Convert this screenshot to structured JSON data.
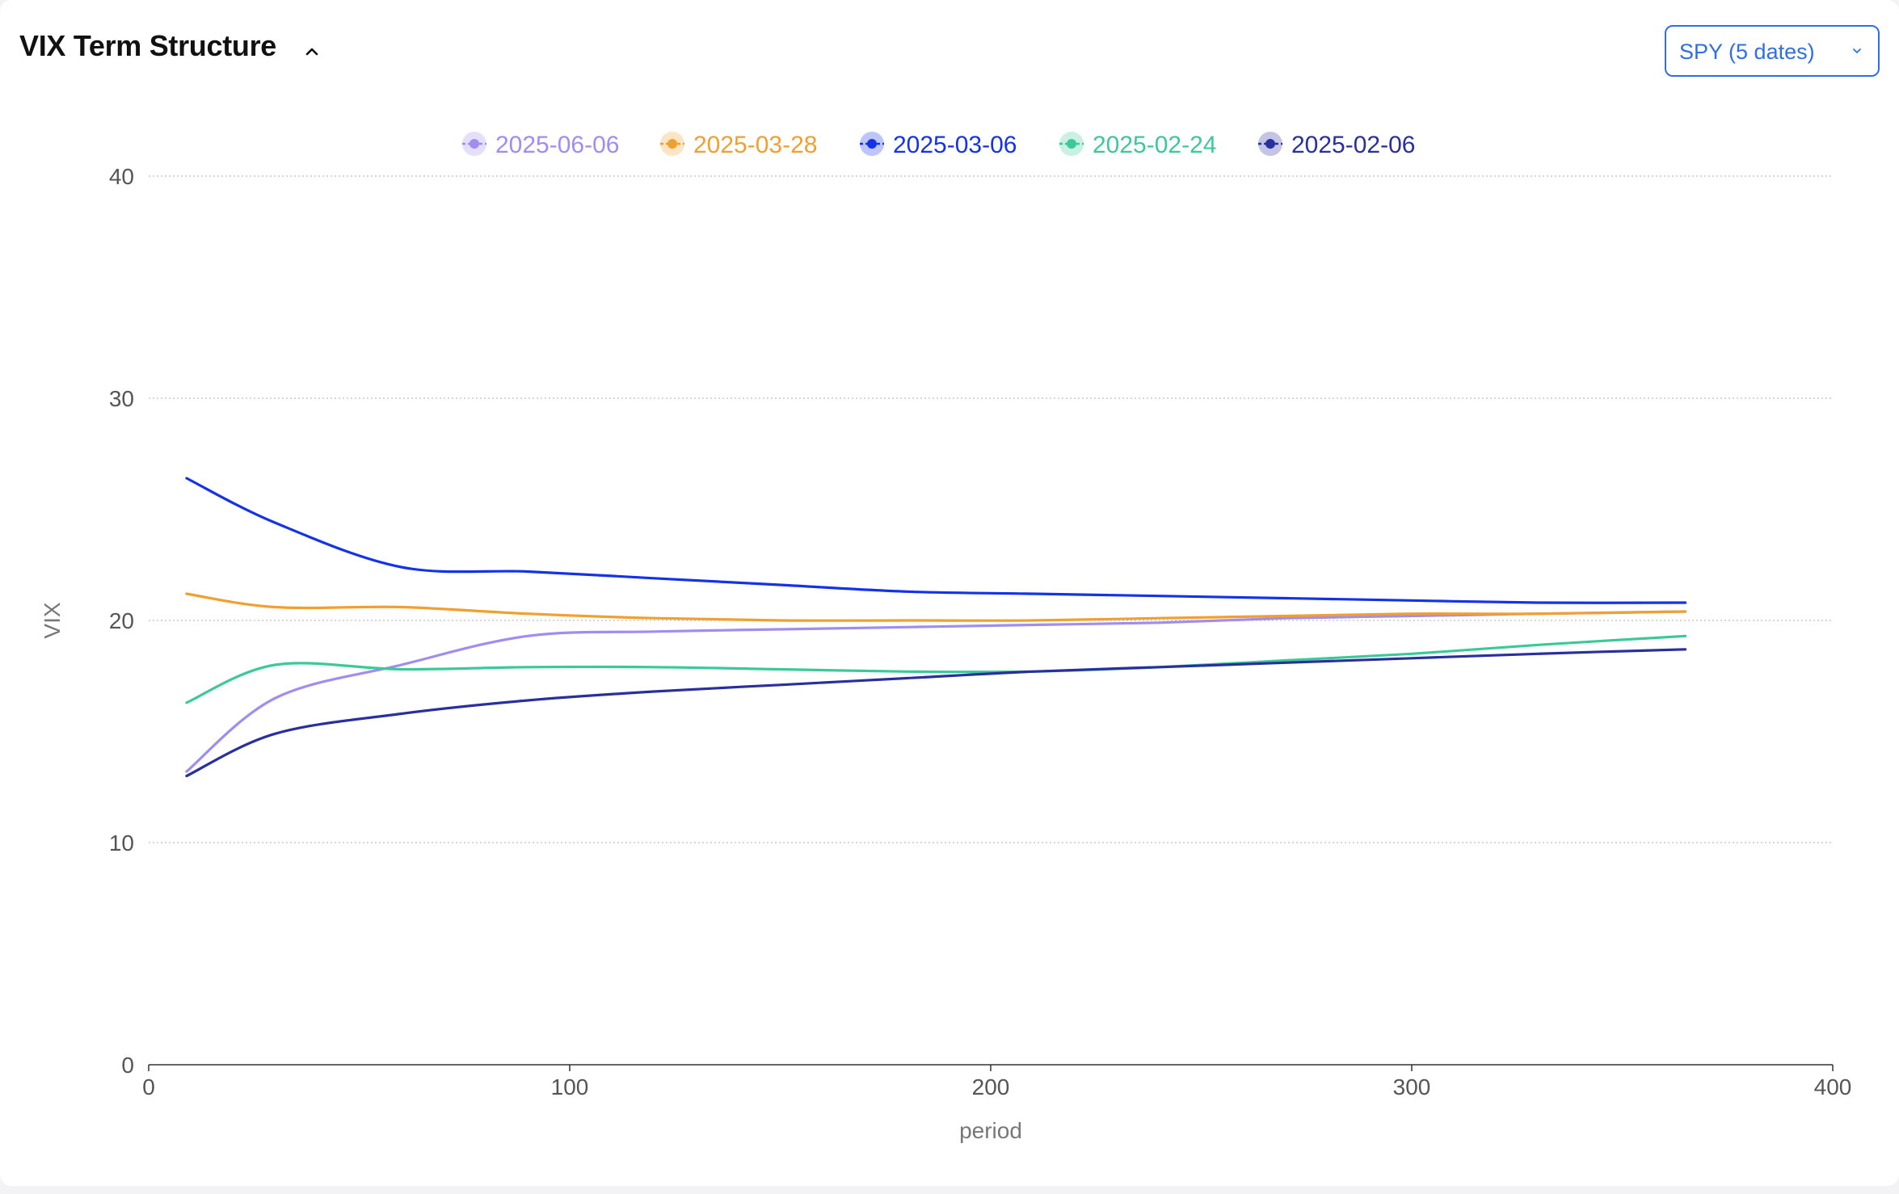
{
  "header": {
    "title": "VIX Term Structure"
  },
  "selector": {
    "value": "SPY (5 dates)"
  },
  "chart_data": {
    "type": "line",
    "xlabel": "period",
    "ylabel": "VIX",
    "xlim": [
      0,
      400
    ],
    "ylim": [
      0,
      40
    ],
    "xticks": [
      0,
      100,
      200,
      300,
      400
    ],
    "yticks": [
      0,
      10,
      20,
      30,
      40
    ],
    "grid": "horizontal-dotted",
    "legend_position": "top-center",
    "series": [
      {
        "name": "2025-06-06",
        "color": "#a18cf0",
        "x": [
          9,
          30,
          60,
          90,
          120,
          150,
          180,
          210,
          240,
          270,
          300,
          330,
          365
        ],
        "values": [
          13.2,
          16.5,
          18.0,
          19.3,
          19.5,
          19.6,
          19.7,
          19.8,
          19.9,
          20.1,
          20.2,
          20.3,
          20.4
        ]
      },
      {
        "name": "2025-03-28",
        "color": "#f0a030",
        "x": [
          9,
          30,
          60,
          90,
          120,
          150,
          180,
          210,
          240,
          270,
          300,
          330,
          365
        ],
        "values": [
          21.2,
          20.6,
          20.6,
          20.3,
          20.1,
          20.0,
          20.0,
          20.0,
          20.1,
          20.2,
          20.3,
          20.3,
          20.4
        ]
      },
      {
        "name": "2025-03-06",
        "color": "#1433e8",
        "x": [
          9,
          30,
          60,
          90,
          120,
          150,
          180,
          210,
          240,
          270,
          300,
          330,
          365
        ],
        "values": [
          26.4,
          24.4,
          22.4,
          22.2,
          21.9,
          21.6,
          21.3,
          21.2,
          21.1,
          21.0,
          20.9,
          20.8,
          20.8
        ]
      },
      {
        "name": "2025-02-24",
        "color": "#3cc99a",
        "x": [
          9,
          30,
          60,
          90,
          120,
          150,
          180,
          210,
          240,
          270,
          300,
          330,
          365
        ],
        "values": [
          16.3,
          18.0,
          17.8,
          17.9,
          17.9,
          17.8,
          17.7,
          17.7,
          17.9,
          18.2,
          18.5,
          18.9,
          19.3
        ]
      },
      {
        "name": "2025-02-06",
        "color": "#2a2f9e",
        "x": [
          9,
          30,
          60,
          90,
          120,
          150,
          180,
          210,
          240,
          270,
          300,
          330,
          365
        ],
        "values": [
          13.0,
          14.9,
          15.8,
          16.4,
          16.8,
          17.1,
          17.4,
          17.7,
          17.9,
          18.1,
          18.3,
          18.5,
          18.7
        ]
      }
    ]
  }
}
